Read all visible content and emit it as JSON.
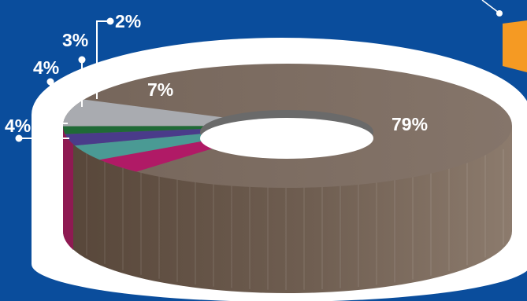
{
  "chart_data": {
    "type": "pie",
    "style": "3d-donut",
    "title": "",
    "categories": [
      "",
      "",
      "",
      "",
      "",
      ""
    ],
    "values": [
      79,
      4,
      4,
      3,
      2,
      7
    ],
    "labels": [
      "79%",
      "4%",
      "4%",
      "3%",
      "2%",
      "7%"
    ],
    "colors": [
      "#7d6a5d",
      "#b01a66",
      "#4a9a94",
      "#4a3b8a",
      "#1f6a36",
      "#a9abb0"
    ],
    "legend": "none",
    "grid": false
  },
  "colors": {
    "background": "#0a4d9c",
    "outline": "#ffffff",
    "accent": "#f59a23",
    "label_text": "#ffffff"
  }
}
